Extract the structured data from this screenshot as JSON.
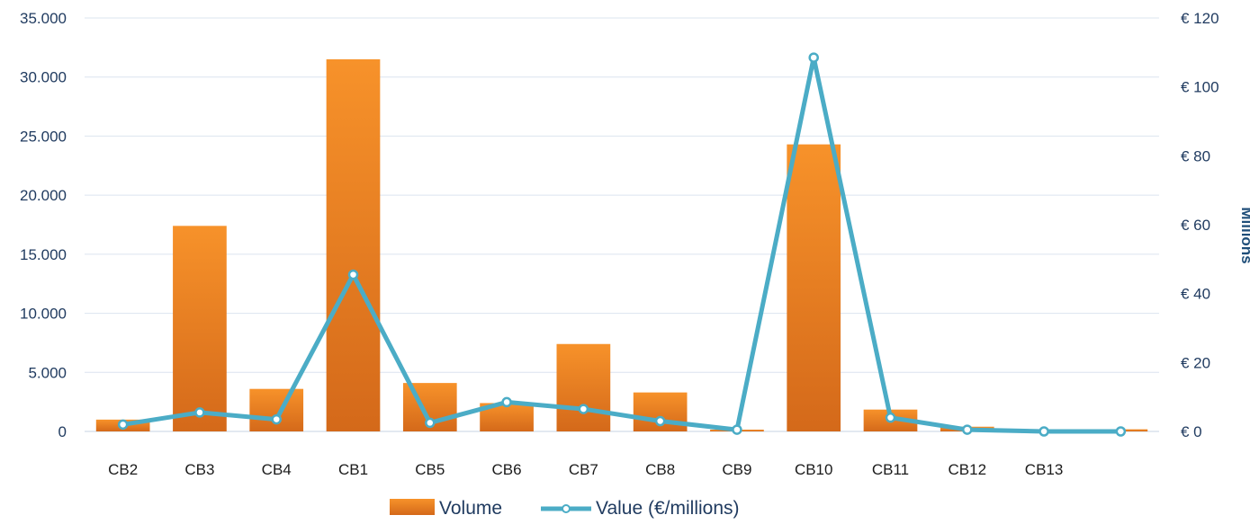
{
  "chart_data": {
    "type": "bar",
    "categories": [
      "CB2",
      "CB3",
      "CB4",
      "CB1",
      "CB5",
      "CB6",
      "CB7",
      "CB8",
      "CB9",
      "CB10",
      "CB11",
      "CB12",
      "CB13",
      ""
    ],
    "series": [
      {
        "name": "Volume",
        "type": "bar",
        "axis": "left",
        "color": "#f0841f",
        "values": [
          1000,
          17400,
          3600,
          31500,
          4100,
          2400,
          7400,
          3300,
          150,
          24300,
          1850,
          400,
          80,
          180
        ]
      },
      {
        "name": "Value (€/millions)",
        "type": "line",
        "axis": "right",
        "color": "#4bacc6",
        "values": [
          2,
          5.5,
          3.5,
          45.5,
          2.5,
          8.5,
          6.5,
          3,
          0.5,
          108.5,
          4,
          0.5,
          0,
          0
        ]
      }
    ],
    "y_left": {
      "ylim": [
        0,
        35000
      ],
      "ticks": [
        0,
        5000,
        10000,
        15000,
        20000,
        25000,
        30000,
        35000
      ],
      "tick_labels": [
        "0",
        "5.000",
        "10.000",
        "15.000",
        "20.000",
        "25.000",
        "30.000",
        "35.000"
      ]
    },
    "y_right": {
      "ylim": [
        0,
        120
      ],
      "ticks": [
        0,
        20,
        40,
        60,
        80,
        100,
        120
      ],
      "tick_labels": [
        "€ 0",
        "€ 20",
        "€ 40",
        "€ 60",
        "€ 80",
        "€ 100",
        "€ 120"
      ],
      "label": "Millions"
    },
    "grid": true,
    "legend_position": "bottom"
  }
}
